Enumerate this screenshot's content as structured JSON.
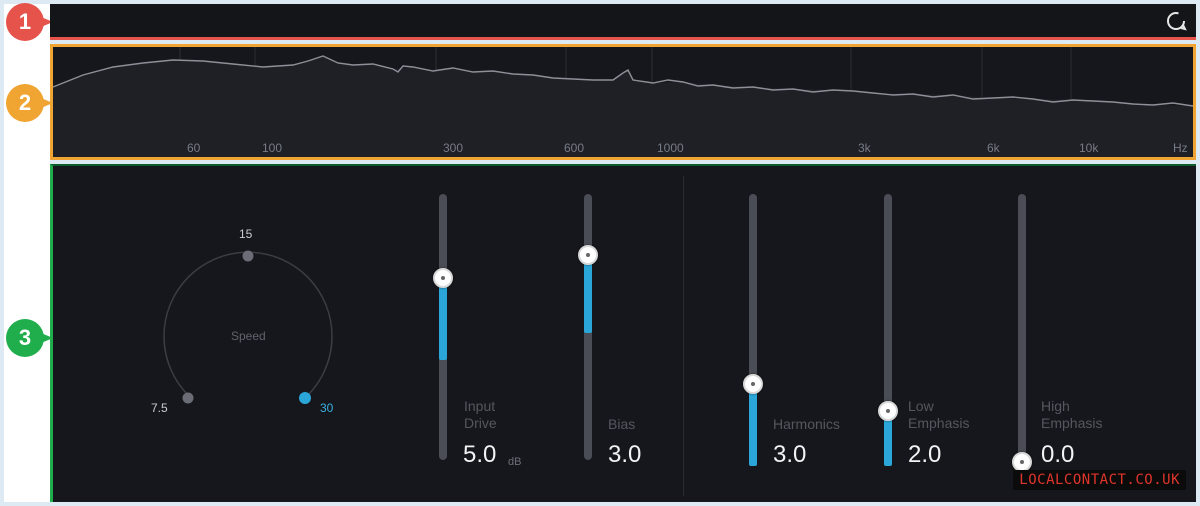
{
  "badges": [
    {
      "number": "1",
      "color": "#e5534b"
    },
    {
      "number": "2",
      "color": "#f0a432"
    },
    {
      "number": "3",
      "color": "#1fae4b"
    }
  ],
  "toolbar": {
    "refresh_icon": "refresh-icon"
  },
  "spectrum": {
    "frequency_labels": [
      "60",
      "100",
      "300",
      "600",
      "1000",
      "3k",
      "6k",
      "10k",
      "Hz"
    ]
  },
  "speed_knob": {
    "label": "Speed",
    "positions": [
      "7.5",
      "15",
      "30"
    ],
    "selected": "30"
  },
  "sliders": [
    {
      "id": "input-drive",
      "label_line1": "Input",
      "label_line2": "Drive",
      "value": "5.0",
      "unit": "dB",
      "level": 0.62
    },
    {
      "id": "bias",
      "label_line1": "",
      "label_line2": "Bias",
      "value": "3.0",
      "unit": "",
      "level": 0.78
    },
    {
      "id": "harmonics",
      "label_line1": "",
      "label_line2": "Harmonics",
      "value": "3.0",
      "unit": "",
      "level": 0.3
    },
    {
      "id": "low-emphasis",
      "label_line1": "Low",
      "label_line2": "Emphasis",
      "value": "2.0",
      "unit": "",
      "level": 0.2
    },
    {
      "id": "high-emphasis",
      "label_line1": "High",
      "label_line2": "Emphasis",
      "value": "0.0",
      "unit": "",
      "level": 0.0
    }
  ],
  "colors": {
    "accent": "#2aa7d8",
    "panel1_border": "#e5534b",
    "panel2_border": "#f0a432",
    "panel3_border": "#1fae4b"
  },
  "watermark": "LOCALCONTACT.CO.UK"
}
